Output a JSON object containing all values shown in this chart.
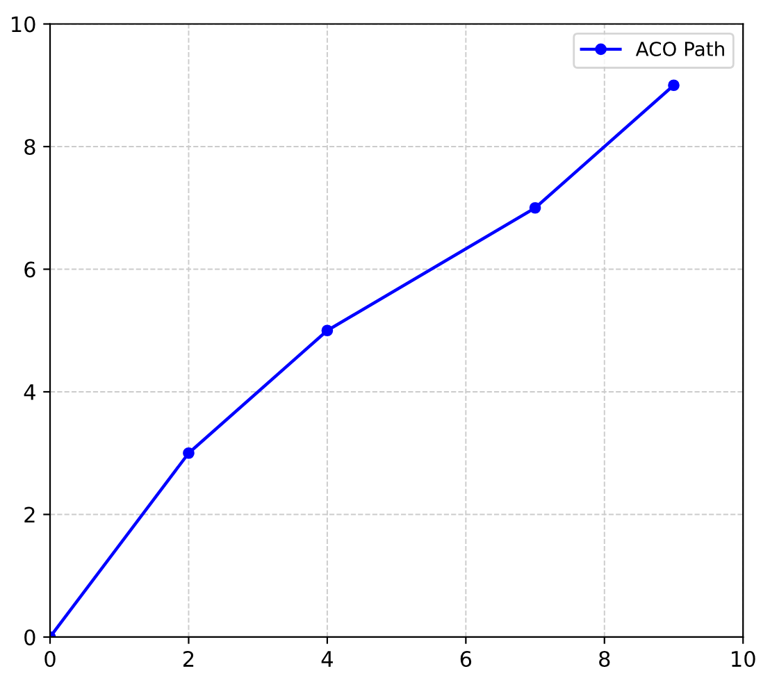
{
  "chart_data": {
    "type": "line",
    "x": [
      0,
      2,
      4,
      7,
      9
    ],
    "series": [
      {
        "name": "ACO Path",
        "color": "#0000ff",
        "values": [
          0,
          3,
          5,
          7,
          9
        ]
      }
    ],
    "xlim": [
      0,
      10
    ],
    "ylim": [
      0,
      10
    ],
    "xticks": [
      0,
      2,
      4,
      6,
      8,
      10
    ],
    "yticks": [
      0,
      2,
      4,
      6,
      8,
      10
    ],
    "grid": true,
    "legend": "top right",
    "marker": "circle",
    "line_style": "solid"
  }
}
